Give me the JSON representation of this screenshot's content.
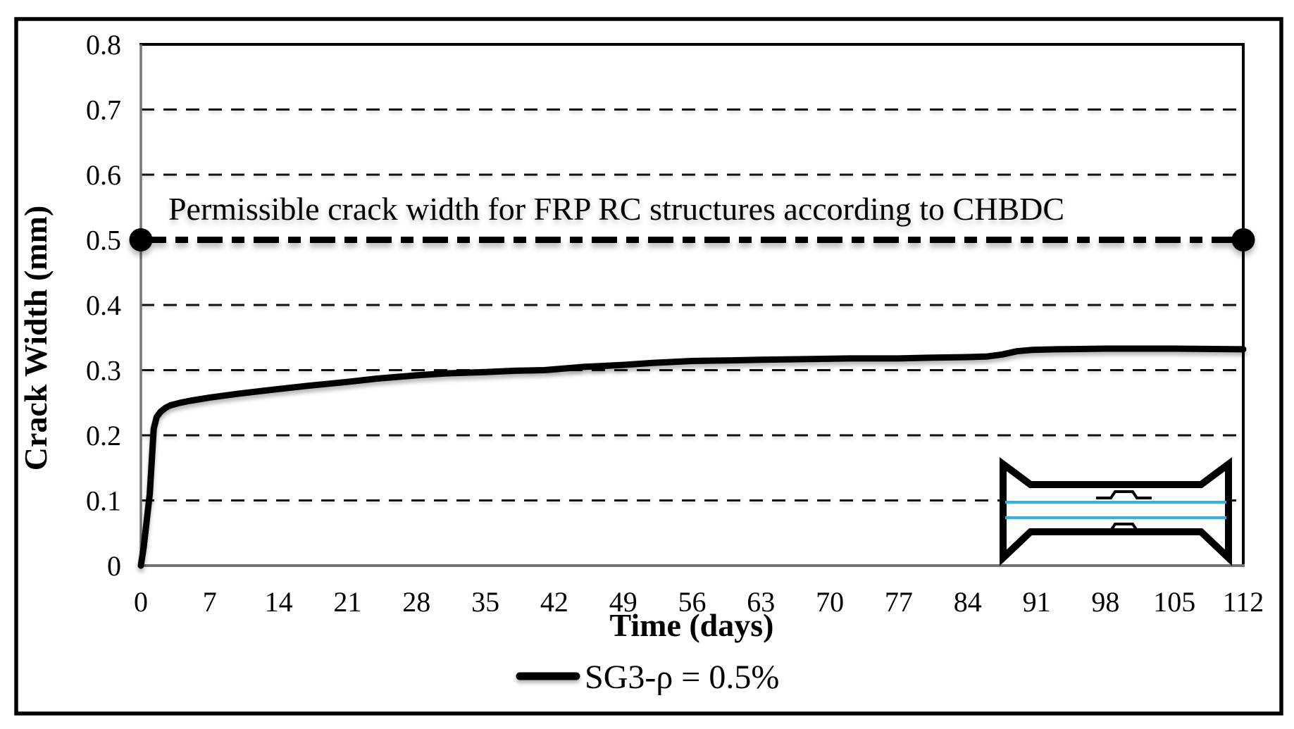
{
  "figure": {
    "kind": "excel-style line chart with permissible-limit line and specimen inset"
  },
  "chart_data": {
    "type": "line",
    "title": "",
    "xlabel": "Time (days)",
    "ylabel": "Crack Width (mm)",
    "xlim": [
      0,
      112
    ],
    "ylim": [
      0,
      0.8
    ],
    "x_ticks": [
      0,
      7,
      14,
      21,
      28,
      35,
      42,
      49,
      56,
      63,
      70,
      77,
      84,
      91,
      98,
      105,
      112
    ],
    "y_ticks": [
      0,
      0.1,
      0.2,
      0.3,
      0.4,
      0.5,
      0.6,
      0.7,
      0.8
    ],
    "y_tick_labels": [
      "0",
      "0.1",
      "0.2",
      "0.3",
      "0.4",
      "0.5",
      "0.6",
      "0.7",
      "0.8"
    ],
    "grid": "horizontal-dashed",
    "legend_position": "bottom-center",
    "limit_line": {
      "value": 0.5,
      "label": "Permissible crack width for FRP RC structures according to CHBDC",
      "style": "bold-dashed-with-filled-circle-end-markers"
    },
    "series": [
      {
        "name": "SG3-ρ = 0.5%",
        "color": "#000000",
        "points": [
          [
            0,
            0
          ],
          [
            0.3,
            0.03
          ],
          [
            0.6,
            0.07
          ],
          [
            0.9,
            0.11
          ],
          [
            1.1,
            0.16
          ],
          [
            1.3,
            0.21
          ],
          [
            1.6,
            0.228
          ],
          [
            2,
            0.236
          ],
          [
            2.5,
            0.242
          ],
          [
            3,
            0.246
          ],
          [
            4,
            0.25
          ],
          [
            5,
            0.253
          ],
          [
            7,
            0.258
          ],
          [
            10,
            0.264
          ],
          [
            14,
            0.271
          ],
          [
            17,
            0.276
          ],
          [
            21,
            0.282
          ],
          [
            24,
            0.287
          ],
          [
            28,
            0.292
          ],
          [
            31,
            0.295
          ],
          [
            35,
            0.297
          ],
          [
            38,
            0.299
          ],
          [
            41,
            0.3
          ],
          [
            45,
            0.305
          ],
          [
            49,
            0.308
          ],
          [
            52,
            0.311
          ],
          [
            56,
            0.314
          ],
          [
            60,
            0.315
          ],
          [
            63,
            0.316
          ],
          [
            68,
            0.317
          ],
          [
            72,
            0.318
          ],
          [
            77,
            0.318
          ],
          [
            80,
            0.319
          ],
          [
            84,
            0.32
          ],
          [
            86,
            0.321
          ],
          [
            87.5,
            0.324
          ],
          [
            89,
            0.329
          ],
          [
            90.5,
            0.331
          ],
          [
            93,
            0.332
          ],
          [
            98,
            0.333
          ],
          [
            105,
            0.333
          ],
          [
            112,
            0.332
          ]
        ]
      }
    ],
    "icons": {
      "inset": "dogbone-specimen-with-two-frp-bars-and-strain-gauges"
    },
    "colors": {
      "curve": "#000000",
      "limit_line": "#000000",
      "grid": "#111111",
      "axis_line": "#757575",
      "plot_border": "#000000",
      "frame": "#000000",
      "frp_bar": "#2fb3e8",
      "text": "#000000"
    }
  }
}
